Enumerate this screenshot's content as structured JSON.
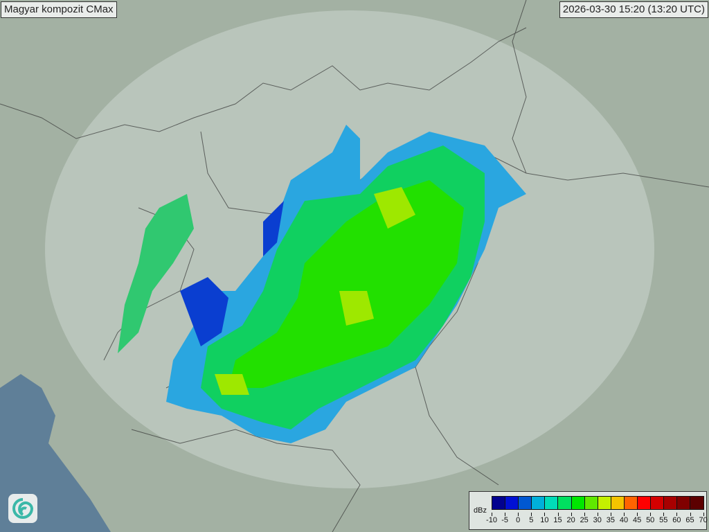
{
  "header": {
    "title": "Magyar kompozit  CMax",
    "timestamp": "2026-03-30 15:20 (13:20 UTC)"
  },
  "legend": {
    "unit": "dBz",
    "ticks": [
      "-10",
      "-5",
      "0",
      "5",
      "10",
      "15",
      "20",
      "25",
      "30",
      "35",
      "40",
      "45",
      "50",
      "55",
      "60",
      "65",
      "70"
    ],
    "colors": [
      "#02028f",
      "#0010d4",
      "#0058d2",
      "#00b0da",
      "#00dcb8",
      "#00e060",
      "#00e800",
      "#60e800",
      "#c4f000",
      "#f4c400",
      "#ff6400",
      "#ff0000",
      "#d40000",
      "#a80000",
      "#800000",
      "#5c0000"
    ]
  },
  "logo": {
    "icon": "swirl-logo-icon"
  },
  "map": {
    "background": "#9fae9f",
    "sea": "#5f7f98",
    "radar_range": "#c9d3cc"
  }
}
